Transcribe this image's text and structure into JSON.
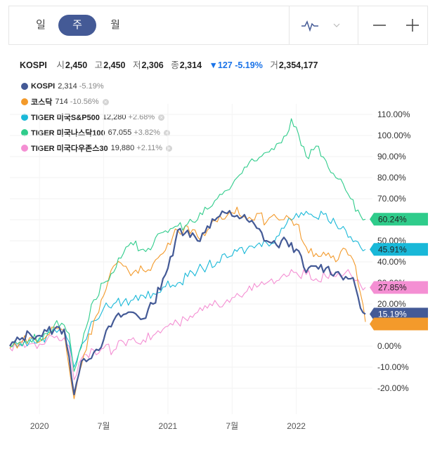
{
  "toolbar": {
    "periods": [
      "일",
      "주",
      "월"
    ],
    "active_period": "주",
    "chart_type_icon": "line-chart-icon",
    "dropdown_icon": "chevron-down-icon",
    "zoom_out_icon": "minus-icon",
    "zoom_in_icon": "plus-icon"
  },
  "quote": {
    "name": "KOSPI",
    "open_label": "시",
    "open": "2,450",
    "high_label": "고",
    "high": "2,450",
    "low_label": "저",
    "low": "2,306",
    "close_label": "종",
    "close": "2,314",
    "change": "▼127 -5.19%",
    "volume_label": "거",
    "volume": "2,354,177"
  },
  "legend": [
    {
      "name": "KOSPI",
      "value": "2,314",
      "change": "-5.19%",
      "removable": false,
      "color": "#445a96"
    },
    {
      "name": "코스닥",
      "value": "714",
      "change": "-10.56%",
      "removable": true,
      "color": "#f39a2b"
    },
    {
      "name": "TIGER 미국S&P500",
      "value": "12,280",
      "change": "+2.68%",
      "removable": true,
      "color": "#19b8d8"
    },
    {
      "name": "TIGER 미국나스닥100",
      "value": "67,055",
      "change": "+3.82%",
      "removable": true,
      "color": "#2fcc8b"
    },
    {
      "name": "TIGER 미국다우존스30",
      "value": "19,880",
      "change": "+2.11%",
      "removable": true,
      "color": "#f48fd3"
    }
  ],
  "chart_data": {
    "type": "line",
    "ylim": [
      -25,
      113
    ],
    "y_ticks": [
      -20,
      -10,
      0,
      10,
      20,
      30,
      40,
      50,
      60,
      70,
      80,
      90,
      100,
      110
    ],
    "y_tick_labels": [
      "-20.00%",
      "-10.00%",
      "0.00%",
      "10.00%",
      "20.00%",
      "30.00%",
      "40.00%",
      "50.00%",
      "60.00%",
      "70.00%",
      "80.00%",
      "90.00%",
      "100.00%",
      "110.00%"
    ],
    "x_ticks": [
      {
        "label": "2020",
        "x": 12
      },
      {
        "label": "7월",
        "x": 38
      },
      {
        "label": "2021",
        "x": 64
      },
      {
        "label": "7월",
        "x": 90
      },
      {
        "label": "2022",
        "x": 116
      }
    ],
    "x_range": [
      0,
      144
    ],
    "end_labels": [
      {
        "label": "60.24%",
        "value": 60.24,
        "color": "#2fcc8b"
      },
      {
        "label": "45.91%",
        "value": 45.91,
        "color": "#19b8d8"
      },
      {
        "label": "27.85%",
        "value": 27.85,
        "color": "#f48fd3"
      },
      {
        "label": "15.19%",
        "value": 15.19,
        "color": "#445a96"
      },
      {
        "label": "",
        "value": 11.5,
        "color": "#f39a2b"
      }
    ],
    "series": [
      {
        "name": "KOSPI",
        "color": "#445a96",
        "points": [
          [
            0,
            0
          ],
          [
            4,
            3
          ],
          [
            8,
            6
          ],
          [
            12,
            5
          ],
          [
            15,
            7
          ],
          [
            18,
            8
          ],
          [
            22,
            8
          ],
          [
            24,
            -5
          ],
          [
            26,
            -23
          ],
          [
            28,
            -13
          ],
          [
            30,
            -6
          ],
          [
            34,
            -3
          ],
          [
            38,
            3
          ],
          [
            42,
            12
          ],
          [
            46,
            15
          ],
          [
            50,
            16
          ],
          [
            54,
            13
          ],
          [
            58,
            20
          ],
          [
            62,
            32
          ],
          [
            66,
            43
          ],
          [
            68,
            55
          ],
          [
            72,
            55
          ],
          [
            76,
            50
          ],
          [
            80,
            57
          ],
          [
            84,
            61
          ],
          [
            88,
            63
          ],
          [
            92,
            62
          ],
          [
            96,
            60
          ],
          [
            100,
            56
          ],
          [
            104,
            50
          ],
          [
            108,
            48
          ],
          [
            112,
            50
          ],
          [
            116,
            46
          ],
          [
            120,
            35
          ],
          [
            124,
            38
          ],
          [
            128,
            37
          ],
          [
            132,
            35
          ],
          [
            136,
            33
          ],
          [
            138,
            32
          ],
          [
            140,
            28
          ],
          [
            142,
            18
          ],
          [
            144,
            15.19
          ]
        ]
      },
      {
        "name": "코스닥",
        "color": "#f39a2b",
        "points": [
          [
            0,
            -1
          ],
          [
            4,
            2
          ],
          [
            8,
            4
          ],
          [
            12,
            2
          ],
          [
            15,
            5
          ],
          [
            18,
            9
          ],
          [
            22,
            7
          ],
          [
            24,
            -10
          ],
          [
            26,
            -25
          ],
          [
            28,
            -13
          ],
          [
            30,
            -4
          ],
          [
            34,
            12
          ],
          [
            38,
            24
          ],
          [
            42,
            38
          ],
          [
            46,
            38
          ],
          [
            50,
            35
          ],
          [
            54,
            36
          ],
          [
            58,
            39
          ],
          [
            62,
            44
          ],
          [
            66,
            52
          ],
          [
            68,
            55
          ],
          [
            72,
            57
          ],
          [
            76,
            52
          ],
          [
            80,
            55
          ],
          [
            84,
            59
          ],
          [
            88,
            62
          ],
          [
            92,
            66
          ],
          [
            96,
            60
          ],
          [
            100,
            63
          ],
          [
            104,
            59
          ],
          [
            108,
            61
          ],
          [
            112,
            62
          ],
          [
            116,
            58
          ],
          [
            120,
            47
          ],
          [
            124,
            44
          ],
          [
            128,
            43
          ],
          [
            132,
            40
          ],
          [
            136,
            46
          ],
          [
            138,
            43
          ],
          [
            140,
            38
          ],
          [
            142,
            25
          ],
          [
            144,
            11.5
          ]
        ]
      },
      {
        "name": "TIGER 미국S&P500",
        "color": "#19b8d8",
        "points": [
          [
            0,
            0
          ],
          [
            4,
            1
          ],
          [
            8,
            2
          ],
          [
            12,
            3
          ],
          [
            15,
            5
          ],
          [
            18,
            8
          ],
          [
            22,
            8
          ],
          [
            24,
            2
          ],
          [
            26,
            -10
          ],
          [
            28,
            -3
          ],
          [
            30,
            2
          ],
          [
            34,
            12
          ],
          [
            38,
            18
          ],
          [
            42,
            20
          ],
          [
            46,
            21
          ],
          [
            50,
            22
          ],
          [
            54,
            24
          ],
          [
            58,
            25
          ],
          [
            62,
            28
          ],
          [
            66,
            29
          ],
          [
            68,
            30
          ],
          [
            72,
            33
          ],
          [
            76,
            36
          ],
          [
            80,
            38
          ],
          [
            84,
            40
          ],
          [
            88,
            42
          ],
          [
            92,
            45
          ],
          [
            96,
            46
          ],
          [
            100,
            48
          ],
          [
            104,
            49
          ],
          [
            108,
            52
          ],
          [
            112,
            58
          ],
          [
            116,
            63
          ],
          [
            120,
            64
          ],
          [
            124,
            61
          ],
          [
            128,
            63
          ],
          [
            132,
            58
          ],
          [
            136,
            55
          ],
          [
            138,
            52
          ],
          [
            140,
            50
          ],
          [
            142,
            47
          ],
          [
            144,
            45.91
          ]
        ]
      },
      {
        "name": "TIGER 미국나스닥100",
        "color": "#2fcc8b",
        "points": [
          [
            0,
            0
          ],
          [
            4,
            2
          ],
          [
            8,
            3
          ],
          [
            12,
            4
          ],
          [
            15,
            6
          ],
          [
            18,
            10
          ],
          [
            22,
            10
          ],
          [
            24,
            6
          ],
          [
            26,
            -12
          ],
          [
            28,
            -3
          ],
          [
            30,
            6
          ],
          [
            34,
            22
          ],
          [
            38,
            30
          ],
          [
            42,
            35
          ],
          [
            46,
            44
          ],
          [
            50,
            48
          ],
          [
            54,
            46
          ],
          [
            58,
            48
          ],
          [
            62,
            54
          ],
          [
            66,
            56
          ],
          [
            68,
            57
          ],
          [
            72,
            58
          ],
          [
            76,
            60
          ],
          [
            80,
            65
          ],
          [
            84,
            70
          ],
          [
            88,
            74
          ],
          [
            92,
            80
          ],
          [
            96,
            85
          ],
          [
            100,
            88
          ],
          [
            104,
            92
          ],
          [
            108,
            96
          ],
          [
            112,
            100
          ],
          [
            114,
            108
          ],
          [
            116,
            104
          ],
          [
            120,
            90
          ],
          [
            124,
            95
          ],
          [
            128,
            88
          ],
          [
            132,
            80
          ],
          [
            136,
            74
          ],
          [
            138,
            70
          ],
          [
            140,
            64
          ],
          [
            142,
            62
          ],
          [
            144,
            60.24
          ]
        ]
      },
      {
        "name": "TIGER 미국다우존스30",
        "color": "#f48fd3",
        "points": [
          [
            0,
            -1
          ],
          [
            4,
            0
          ],
          [
            8,
            1
          ],
          [
            12,
            1
          ],
          [
            15,
            3
          ],
          [
            18,
            4
          ],
          [
            22,
            4
          ],
          [
            24,
            0
          ],
          [
            26,
            -16
          ],
          [
            28,
            -8
          ],
          [
            30,
            -4
          ],
          [
            34,
            -2
          ],
          [
            38,
            -1
          ],
          [
            42,
            -2
          ],
          [
            46,
            2
          ],
          [
            50,
            4
          ],
          [
            54,
            3
          ],
          [
            58,
            5
          ],
          [
            62,
            8
          ],
          [
            66,
            10
          ],
          [
            68,
            11
          ],
          [
            72,
            12
          ],
          [
            76,
            16
          ],
          [
            80,
            18
          ],
          [
            84,
            20
          ],
          [
            88,
            22
          ],
          [
            92,
            25
          ],
          [
            96,
            26
          ],
          [
            100,
            28
          ],
          [
            104,
            30
          ],
          [
            108,
            31
          ],
          [
            112,
            33
          ],
          [
            116,
            35
          ],
          [
            120,
            34
          ],
          [
            124,
            32
          ],
          [
            128,
            33
          ],
          [
            132,
            33
          ],
          [
            136,
            35
          ],
          [
            138,
            34
          ],
          [
            140,
            31
          ],
          [
            142,
            29
          ],
          [
            144,
            27.85
          ]
        ]
      }
    ]
  }
}
